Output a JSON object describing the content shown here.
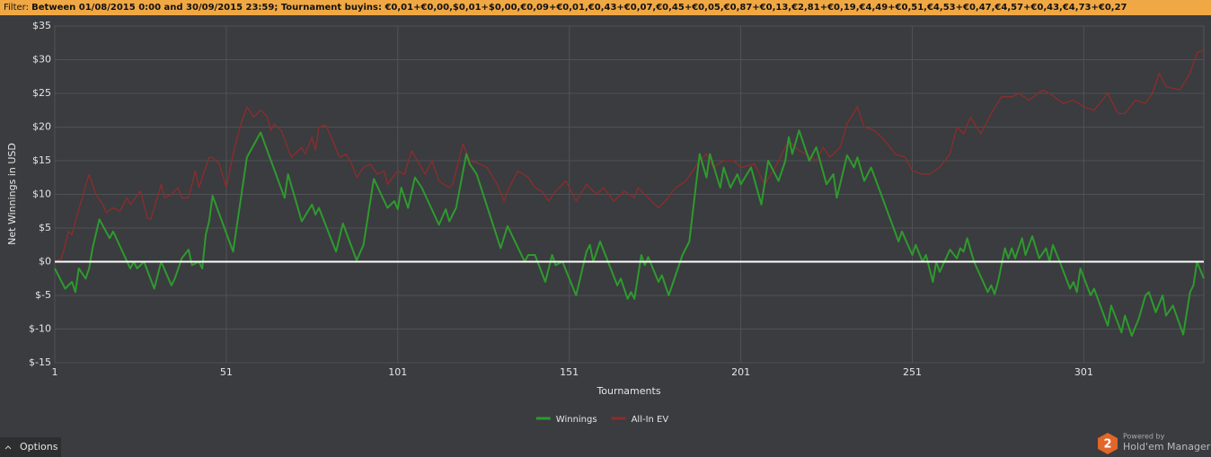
{
  "filter": {
    "label": "Filter:",
    "text": "Between 01/08/2015 0:00 and 30/09/2015 23:59; Tournament buyins: €0,01+€0,00,$0,01+$0,00,€0,09+€0,01,€0,43+€0,07,€0,45+€0,05,€0,87+€0,13,€2,81+€0,19,€4,49+€0,51,€4,53+€0,47,€4,57+€0,43,€4,73+€0,27"
  },
  "chart_data": {
    "type": "line",
    "xlabel": "Tournaments",
    "ylabel": "Net Winnings in USD",
    "xlim": [
      1,
      336
    ],
    "xticks": [
      1,
      51,
      101,
      151,
      201,
      251,
      301
    ],
    "ylim": [
      -15,
      35
    ],
    "yticks": [
      {
        "value": -15,
        "label": "$-15"
      },
      {
        "value": -10,
        "label": "$-10"
      },
      {
        "value": -5,
        "label": "$-5"
      },
      {
        "value": 0,
        "label": "$0"
      },
      {
        "value": 5,
        "label": "$5"
      },
      {
        "value": 10,
        "label": "$10"
      },
      {
        "value": 15,
        "label": "$15"
      },
      {
        "value": 20,
        "label": "$20"
      },
      {
        "value": 25,
        "label": "$25"
      },
      {
        "value": 30,
        "label": "$30"
      },
      {
        "value": 35,
        "label": "$35"
      }
    ],
    "grid": true,
    "baseline": 0,
    "legend": "bottom",
    "series": [
      {
        "name": "Winnings",
        "color": "#2e9a2e",
        "x": [
          1,
          4,
          6,
          7,
          8,
          10,
          11,
          12,
          14,
          17,
          18,
          23,
          24,
          25,
          27,
          30,
          32,
          35,
          36,
          38,
          40,
          41,
          43,
          44,
          45,
          46,
          47,
          53,
          54,
          57,
          61,
          68,
          69,
          73,
          76,
          77,
          78,
          83,
          85,
          89,
          91,
          94,
          98,
          100,
          101,
          102,
          104,
          106,
          108,
          113,
          115,
          116,
          118,
          121,
          122,
          124,
          131,
          133,
          138,
          139,
          141,
          144,
          146,
          147,
          149,
          153,
          156,
          157,
          158,
          160,
          165,
          166,
          168,
          169,
          170,
          172,
          173,
          174,
          177,
          178,
          180,
          182,
          184,
          186,
          189,
          191,
          192,
          195,
          196,
          198,
          200,
          201,
          204,
          207,
          209,
          212,
          214,
          215,
          216,
          218,
          221,
          223,
          226,
          228,
          229,
          232,
          234,
          235,
          237,
          239,
          247,
          248,
          251,
          252,
          254,
          255,
          257,
          258,
          259,
          262,
          264,
          265,
          266,
          267,
          269,
          273,
          274,
          275,
          276,
          278,
          279,
          280,
          281,
          283,
          284,
          286,
          288,
          290,
          291,
          292,
          294,
          297,
          298,
          299,
          300,
          303,
          304,
          308,
          309,
          312,
          313,
          315,
          317,
          319,
          320,
          322,
          324,
          325,
          327,
          330,
          332,
          333,
          334,
          336
        ],
        "values": [
          -1,
          -4,
          -3,
          -4.5,
          -1,
          -2.5,
          -1,
          2,
          6.3,
          3.5,
          4.5,
          -1,
          0,
          -1,
          0,
          -4,
          0,
          -3.5,
          -2.5,
          0.5,
          1.8,
          -0.5,
          0,
          -1,
          4,
          6,
          9.8,
          1.5,
          5,
          15.5,
          19.2,
          9.5,
          13,
          6,
          8.5,
          7,
          8,
          1.5,
          5.7,
          0.2,
          2.5,
          12.3,
          8,
          9,
          7.8,
          11,
          8,
          12.5,
          11,
          5.5,
          7.8,
          6,
          8,
          16,
          14.5,
          13,
          2,
          5.3,
          0,
          1,
          1,
          -3,
          1,
          -0.5,
          0,
          -5,
          1.5,
          2.5,
          0,
          3,
          -3.5,
          -2.5,
          -5.5,
          -4.5,
          -5.5,
          1,
          -0.5,
          0.7,
          -3,
          -2,
          -5,
          -2,
          1,
          3,
          16,
          12.5,
          16,
          11,
          14,
          11,
          13,
          11.5,
          14,
          8.5,
          15,
          12,
          15,
          18.5,
          16,
          19.5,
          15,
          17,
          11.5,
          13,
          9.5,
          15.8,
          14,
          15.5,
          12,
          14,
          3,
          4.5,
          1,
          2.5,
          0,
          1,
          -3,
          0,
          -1.5,
          1.8,
          0.5,
          2,
          1.5,
          3.5,
          0,
          -4.5,
          -3.5,
          -4.8,
          -3,
          2,
          0.5,
          2,
          0.5,
          3.5,
          1,
          3.8,
          0.5,
          2,
          0,
          2.5,
          0,
          -4,
          -3,
          -4.5,
          -1,
          -5,
          -4,
          -9.5,
          -6.5,
          -10.5,
          -8,
          -11,
          -8.5,
          -5,
          -4.5,
          -7.5,
          -5,
          -8,
          -6.5,
          -10.8,
          -4.5,
          -3.5,
          0,
          -2.5
        ]
      },
      {
        "name": "All-In EV",
        "color": "#8e2c2c",
        "x": [
          1,
          3,
          5,
          6,
          7,
          11,
          13,
          15,
          16,
          18,
          20,
          22,
          23,
          26,
          28,
          29,
          32,
          33,
          35,
          37,
          38,
          40,
          42,
          43,
          46,
          47,
          48,
          49,
          51,
          53,
          55,
          57,
          59,
          61,
          63,
          64,
          65,
          67,
          70,
          73,
          74,
          76,
          77,
          78,
          80,
          82,
          84,
          86,
          88,
          89,
          91,
          93,
          95,
          97,
          98,
          101,
          103,
          105,
          109,
          111,
          113,
          116,
          117,
          120,
          122,
          125,
          127,
          130,
          132,
          133,
          136,
          139,
          141,
          143,
          145,
          147,
          150,
          153,
          156,
          159,
          161,
          164,
          167,
          170,
          171,
          174,
          177,
          179,
          182,
          185,
          189,
          191,
          193,
          196,
          199,
          201,
          205,
          208,
          211,
          213,
          215,
          218,
          220,
          223,
          225,
          227,
          230,
          232,
          235,
          237,
          240,
          243,
          246,
          249,
          251,
          254,
          256,
          259,
          262,
          264,
          266,
          268,
          271,
          274,
          277,
          280,
          282,
          285,
          289,
          291,
          295,
          298,
          301,
          304,
          308,
          311,
          313,
          316,
          319,
          321,
          323,
          325,
          329,
          332,
          334,
          336
        ],
        "values": [
          0,
          0.5,
          4.5,
          4,
          6,
          13,
          10,
          8.5,
          7.3,
          8,
          7.5,
          9.5,
          8.5,
          10.5,
          6.5,
          6.3,
          11.5,
          9.5,
          10,
          11,
          9.5,
          9.5,
          13.5,
          11,
          15.5,
          15.5,
          15,
          14.5,
          11,
          16,
          20,
          23,
          21.5,
          22.5,
          21.5,
          19.5,
          20.5,
          19.5,
          15.5,
          17,
          16,
          18.5,
          16.5,
          20,
          20.3,
          18,
          15.5,
          16,
          14,
          12.5,
          14,
          14.5,
          13,
          13.5,
          11.5,
          13.5,
          13,
          16.5,
          13,
          15,
          12,
          11,
          11.5,
          17.5,
          15,
          14.5,
          14,
          11.5,
          9,
          10.5,
          13.5,
          12.5,
          11,
          10.5,
          9,
          10.5,
          12,
          9,
          11.5,
          10,
          11,
          9,
          10.5,
          9.5,
          11,
          9.5,
          8,
          9,
          11,
          12,
          15,
          16,
          14,
          15,
          15,
          14,
          14.5,
          11.5,
          14,
          16,
          18,
          16.5,
          16,
          15,
          17,
          15.5,
          17,
          20.5,
          23,
          20,
          19.5,
          18,
          16,
          15.5,
          13.5,
          13,
          13,
          14,
          16,
          20,
          19,
          21.5,
          19,
          22,
          24.5,
          24.5,
          25,
          24,
          25.5,
          25,
          23.5,
          24,
          23,
          22.5,
          25,
          22,
          22,
          24,
          23.5,
          25,
          28,
          26,
          25.5,
          28,
          31,
          31.5
        ]
      }
    ]
  },
  "footer": {
    "options": "Options",
    "powered_by": "Powered by",
    "product": "Hold'em Manager",
    "logo": "2"
  }
}
